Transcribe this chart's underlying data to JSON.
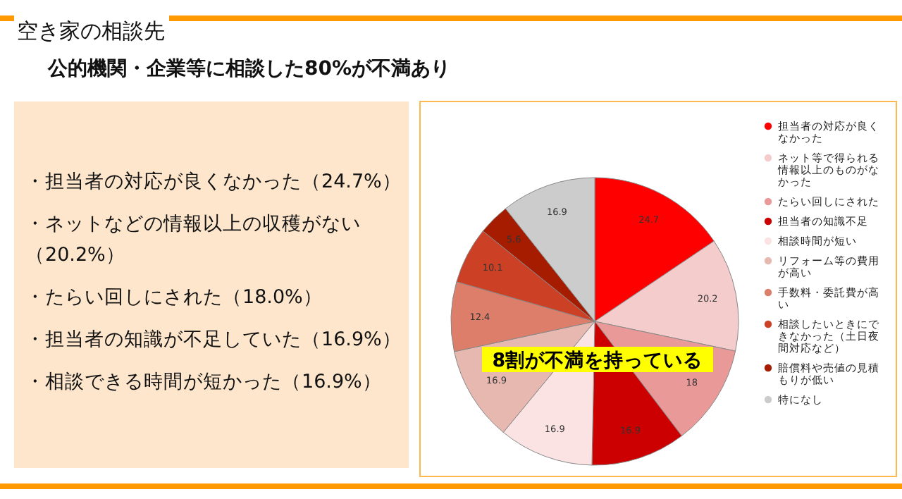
{
  "chart_data": {
    "type": "pie",
    "title": "空き家の相談先",
    "subtitle": "公的機関・企業等に相談した80%が不満あり",
    "categories": [
      "担当者の対応が良くなかった",
      "ネット等で得られる情報以上のものがなかった",
      "たらい回しにされた",
      "担当者の知識不足",
      "相談時間が短い",
      "リフォーム等の費用が高い",
      "手数料・委託費が高い",
      "相談したいときにできなかった（土日夜間対応など）",
      "賠償料や売値の見積もりが低い",
      "特になし"
    ],
    "values": [
      24.7,
      20.2,
      18,
      16.9,
      16.9,
      16.9,
      12.4,
      10.1,
      5.6,
      16.9
    ],
    "colors": [
      "#ff0000",
      "#f4cccc",
      "#ea9999",
      "#cc0000",
      "#fbe3e3",
      "#e6b8af",
      "#dd7e6b",
      "#cc4125",
      "#a61c00",
      "#cccccc"
    ],
    "data_labels": true,
    "legend": "right",
    "annotations": [
      "・担当者の対応が良くなかった（24.7%）",
      "・ネットなどの情報以上の収穫がない（20.2%）",
      "・たらい回しにされた（18.0%）",
      "・担当者の知識が不足していた（16.9%）",
      "・相談できる時間が短かった（16.9%）",
      "8割が不満を持っている"
    ]
  }
}
